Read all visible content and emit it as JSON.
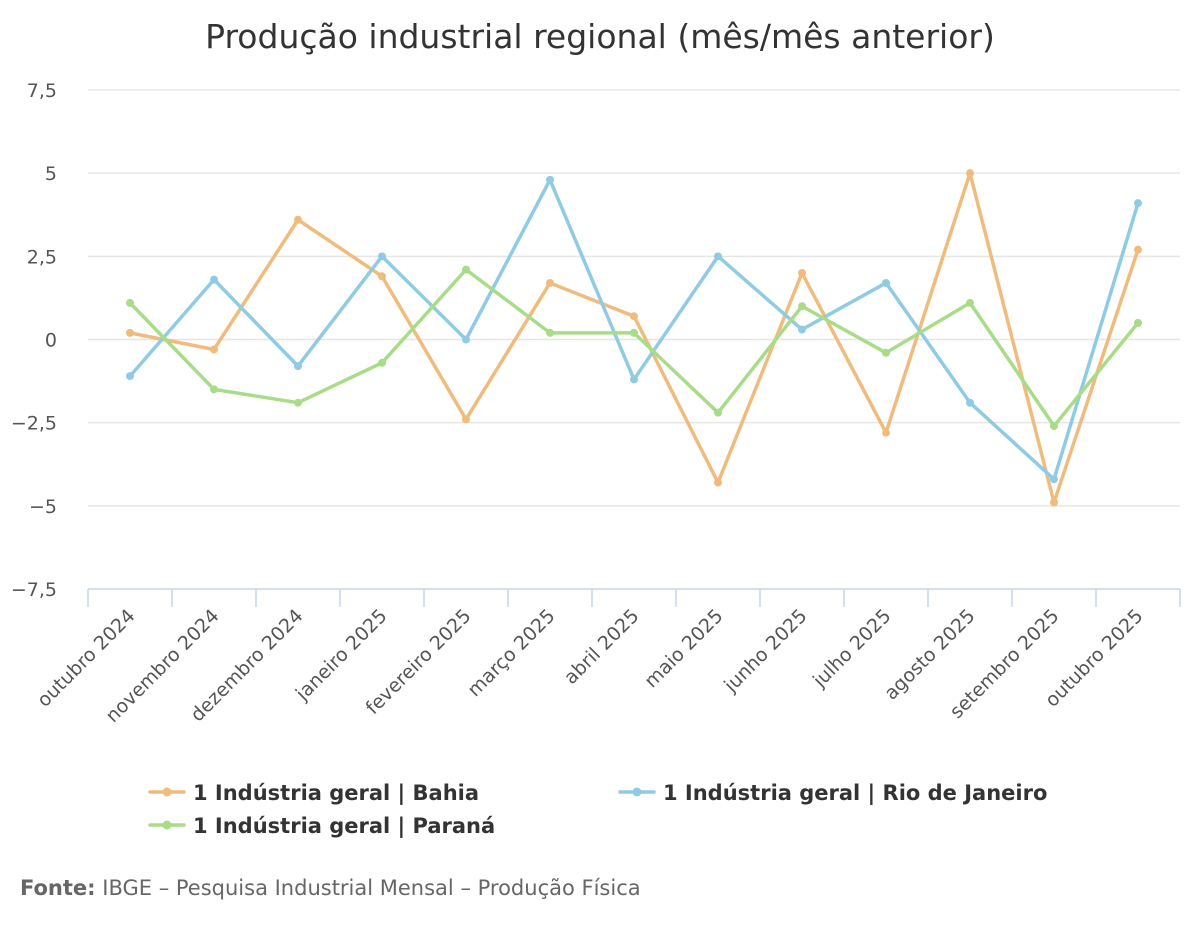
{
  "chart_data": {
    "type": "line",
    "title": "Produção industrial regional (mês/mês anterior)",
    "categories": [
      "outubro 2024",
      "novembro 2024",
      "dezembro 2024",
      "janeiro 2025",
      "fevereiro 2025",
      "março 2025",
      "abril 2025",
      "maio 2025",
      "junho 2025",
      "julho 2025",
      "agosto 2025",
      "setembro 2025",
      "outubro 2025"
    ],
    "ylim": [
      -7.5,
      7.5
    ],
    "yticks": [
      7.5,
      5,
      2.5,
      0,
      -2.5,
      -5,
      -7.5
    ],
    "ytick_labels": [
      "7,5",
      "5",
      "2,5",
      "0",
      "−2,5",
      "−5",
      "−7,5"
    ],
    "grid": true,
    "legend_position": "bottom",
    "series": [
      {
        "name": "1 Indústria geral | Bahia",
        "color": "#f0bc7e",
        "values": [
          0.2,
          -0.3,
          3.6,
          1.9,
          -2.4,
          1.7,
          0.7,
          -4.3,
          2.0,
          -2.8,
          5.0,
          -4.9,
          2.7
        ]
      },
      {
        "name": "1 Indústria geral | Rio de Janeiro",
        "color": "#90cbe4",
        "values": [
          -1.1,
          1.8,
          -0.8,
          2.5,
          0.0,
          4.8,
          -1.2,
          2.5,
          0.3,
          1.7,
          -1.9,
          -4.2,
          4.1
        ]
      },
      {
        "name": "1 Indústria geral | Paraná",
        "color": "#a9dc89",
        "values": [
          1.1,
          -1.5,
          -1.9,
          -0.7,
          2.1,
          0.2,
          0.2,
          -2.2,
          1.0,
          -0.4,
          1.1,
          -2.6,
          0.5
        ]
      }
    ]
  },
  "source": {
    "label": "Fonte:",
    "text": "IBGE – Pesquisa Industrial Mensal – Produção Física"
  }
}
